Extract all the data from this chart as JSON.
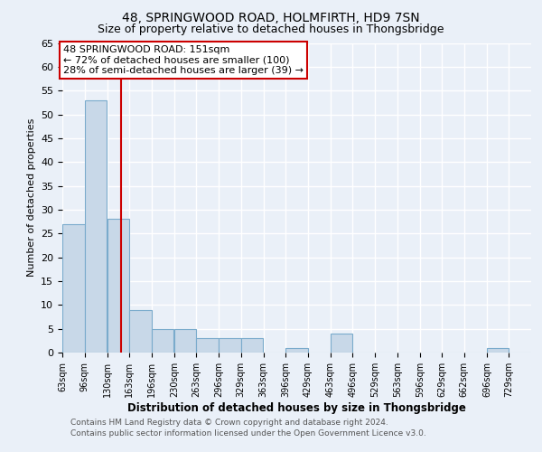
{
  "title1": "48, SPRINGWOOD ROAD, HOLMFIRTH, HD9 7SN",
  "title2": "Size of property relative to detached houses in Thongsbridge",
  "xlabel": "Distribution of detached houses by size in Thongsbridge",
  "ylabel": "Number of detached properties",
  "bar_left_edges": [
    63,
    96,
    130,
    163,
    196,
    230,
    263,
    296,
    329,
    363,
    396,
    429,
    463,
    496,
    529,
    563,
    596,
    629,
    662,
    696,
    729
  ],
  "bar_heights": [
    27,
    53,
    28,
    9,
    5,
    5,
    3,
    3,
    3,
    0,
    1,
    0,
    4,
    0,
    0,
    0,
    0,
    0,
    0,
    1,
    0
  ],
  "bin_width": 33,
  "bar_color": "#c8d8e8",
  "bar_edge_color": "#7aabcc",
  "property_line_x": 151,
  "property_line_color": "#cc0000",
  "ylim": [
    0,
    65
  ],
  "yticks": [
    0,
    5,
    10,
    15,
    20,
    25,
    30,
    35,
    40,
    45,
    50,
    55,
    60,
    65
  ],
  "annotation_text": "48 SPRINGWOOD ROAD: 151sqm\n← 72% of detached houses are smaller (100)\n28% of semi-detached houses are larger (39) →",
  "annotation_box_color": "#ffffff",
  "annotation_box_edge_color": "#cc0000",
  "footer_line1": "Contains HM Land Registry data © Crown copyright and database right 2024.",
  "footer_line2": "Contains public sector information licensed under the Open Government Licence v3.0.",
  "background_color": "#eaf0f8",
  "plot_bg_color": "#eaf0f8",
  "grid_color": "#ffffff",
  "tick_labels": [
    "63sqm",
    "96sqm",
    "130sqm",
    "163sqm",
    "196sqm",
    "230sqm",
    "263sqm",
    "296sqm",
    "329sqm",
    "363sqm",
    "396sqm",
    "429sqm",
    "463sqm",
    "496sqm",
    "529sqm",
    "563sqm",
    "596sqm",
    "629sqm",
    "662sqm",
    "696sqm",
    "729sqm"
  ]
}
